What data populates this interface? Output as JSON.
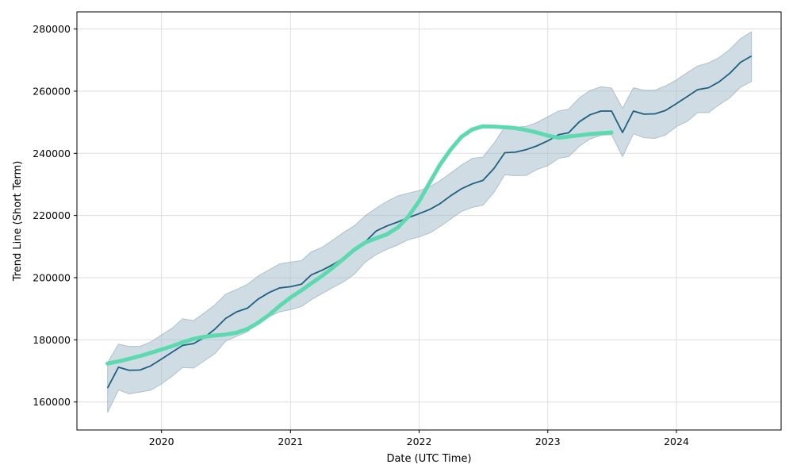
{
  "chart_data": {
    "type": "line",
    "xlabel": "Date (UTC Time)",
    "ylabel": "Trend Line (Short Term)",
    "xlim": [
      "2019-05-06",
      "2024-10-24"
    ],
    "ylim": [
      151000,
      285500
    ],
    "grid": true,
    "x_ticks": [
      {
        "date": "2020-01-01",
        "label": "2020"
      },
      {
        "date": "2021-01-01",
        "label": "2021"
      },
      {
        "date": "2022-01-01",
        "label": "2022"
      },
      {
        "date": "2023-01-01",
        "label": "2023"
      },
      {
        "date": "2024-01-01",
        "label": "2024"
      }
    ],
    "y_ticks": [
      160000,
      180000,
      200000,
      220000,
      240000,
      260000,
      280000
    ],
    "colors": {
      "trend": "#1f5f80",
      "band": "#a8bfce",
      "band_edge": "#8aa5b8",
      "smooth": "#5dd9b0",
      "grid": "#dddddd"
    },
    "series": [
      {
        "role": "trend",
        "points": [
          [
            "2019-08-01",
            164500
          ],
          [
            "2019-09-01",
            171200
          ],
          [
            "2019-10-01",
            170200
          ],
          [
            "2019-11-01",
            170300
          ],
          [
            "2019-12-01",
            171600
          ],
          [
            "2020-01-01",
            173800
          ],
          [
            "2020-02-01",
            176100
          ],
          [
            "2020-03-01",
            178200
          ],
          [
            "2020-04-01",
            178800
          ],
          [
            "2020-05-01",
            180700
          ],
          [
            "2020-06-01",
            183500
          ],
          [
            "2020-07-01",
            186900
          ],
          [
            "2020-08-01",
            189000
          ],
          [
            "2020-09-01",
            190200
          ],
          [
            "2020-10-01",
            193100
          ],
          [
            "2020-11-01",
            195200
          ],
          [
            "2020-12-01",
            196700
          ],
          [
            "2021-01-01",
            197100
          ],
          [
            "2021-02-01",
            197900
          ],
          [
            "2021-03-01",
            200900
          ],
          [
            "2021-04-01",
            202400
          ],
          [
            "2021-05-01",
            204200
          ],
          [
            "2021-06-01",
            206300
          ],
          [
            "2021-07-01",
            208600
          ],
          [
            "2021-08-01",
            211500
          ],
          [
            "2021-09-01",
            215000
          ],
          [
            "2021-10-01",
            216600
          ],
          [
            "2021-11-01",
            217900
          ],
          [
            "2021-12-01",
            219300
          ],
          [
            "2022-01-01",
            220600
          ],
          [
            "2022-02-01",
            222000
          ],
          [
            "2022-03-01",
            223800
          ],
          [
            "2022-04-01",
            226400
          ],
          [
            "2022-05-01",
            228600
          ],
          [
            "2022-06-01",
            230200
          ],
          [
            "2022-07-01",
            231300
          ],
          [
            "2022-08-01",
            235100
          ],
          [
            "2022-09-01",
            240200
          ],
          [
            "2022-10-01",
            240400
          ],
          [
            "2022-11-01",
            241200
          ],
          [
            "2022-12-01",
            242400
          ],
          [
            "2023-01-01",
            244000
          ],
          [
            "2023-02-01",
            246000
          ],
          [
            "2023-03-01",
            246600
          ],
          [
            "2023-04-01",
            250200
          ],
          [
            "2023-05-01",
            252400
          ],
          [
            "2023-06-01",
            253600
          ],
          [
            "2023-07-01",
            253600
          ],
          [
            "2023-08-01",
            246700
          ],
          [
            "2023-09-01",
            253600
          ],
          [
            "2023-10-01",
            252600
          ],
          [
            "2023-11-01",
            252700
          ],
          [
            "2023-12-01",
            253800
          ],
          [
            "2024-01-01",
            256000
          ],
          [
            "2024-02-01",
            258300
          ],
          [
            "2024-03-01",
            260500
          ],
          [
            "2024-04-01",
            261100
          ],
          [
            "2024-05-01",
            263000
          ],
          [
            "2024-06-01",
            265800
          ],
          [
            "2024-07-01",
            269300
          ],
          [
            "2024-08-01",
            271300
          ]
        ]
      },
      {
        "role": "band",
        "upper": [
          [
            "2019-08-01",
            172700
          ],
          [
            "2019-09-01",
            178600
          ],
          [
            "2019-10-01",
            177900
          ],
          [
            "2019-11-01",
            177900
          ],
          [
            "2019-12-01",
            179300
          ],
          [
            "2020-01-01",
            181600
          ],
          [
            "2020-02-01",
            183800
          ],
          [
            "2020-03-01",
            186800
          ],
          [
            "2020-04-01",
            186200
          ],
          [
            "2020-05-01",
            188600
          ],
          [
            "2020-06-01",
            191300
          ],
          [
            "2020-07-01",
            194700
          ],
          [
            "2020-08-01",
            196200
          ],
          [
            "2020-09-01",
            197900
          ],
          [
            "2020-10-01",
            200500
          ],
          [
            "2020-11-01",
            202500
          ],
          [
            "2020-12-01",
            204400
          ],
          [
            "2021-01-01",
            205000
          ],
          [
            "2021-02-01",
            205500
          ],
          [
            "2021-03-01",
            208300
          ],
          [
            "2021-04-01",
            209800
          ],
          [
            "2021-05-01",
            212100
          ],
          [
            "2021-06-01",
            214600
          ],
          [
            "2021-07-01",
            216700
          ],
          [
            "2021-08-01",
            219900
          ],
          [
            "2021-09-01",
            222400
          ],
          [
            "2021-10-01",
            224500
          ],
          [
            "2021-11-01",
            226300
          ],
          [
            "2021-12-01",
            227200
          ],
          [
            "2022-01-01",
            228000
          ],
          [
            "2022-02-01",
            229300
          ],
          [
            "2022-03-01",
            231200
          ],
          [
            "2022-04-01",
            233700
          ],
          [
            "2022-05-01",
            236200
          ],
          [
            "2022-06-01",
            238400
          ],
          [
            "2022-07-01",
            238800
          ],
          [
            "2022-08-01",
            243200
          ],
          [
            "2022-09-01",
            248500
          ],
          [
            "2022-10-01",
            248400
          ],
          [
            "2022-11-01",
            248700
          ],
          [
            "2022-12-01",
            249900
          ],
          [
            "2023-01-01",
            251800
          ],
          [
            "2023-02-01",
            253600
          ],
          [
            "2023-03-01",
            254200
          ],
          [
            "2023-04-01",
            257900
          ],
          [
            "2023-05-01",
            260200
          ],
          [
            "2023-06-01",
            261400
          ],
          [
            "2023-07-01",
            261000
          ],
          [
            "2023-08-01",
            254500
          ],
          [
            "2023-09-01",
            261100
          ],
          [
            "2023-10-01",
            260300
          ],
          [
            "2023-11-01",
            260300
          ],
          [
            "2023-12-01",
            261700
          ],
          [
            "2024-01-01",
            263600
          ],
          [
            "2024-02-01",
            266000
          ],
          [
            "2024-03-01",
            268100
          ],
          [
            "2024-04-01",
            269100
          ],
          [
            "2024-05-01",
            270800
          ],
          [
            "2024-06-01",
            273500
          ],
          [
            "2024-07-01",
            276900
          ],
          [
            "2024-08-01",
            279100
          ]
        ],
        "lower": [
          [
            "2019-08-01",
            156600
          ],
          [
            "2019-09-01",
            163900
          ],
          [
            "2019-10-01",
            162600
          ],
          [
            "2019-11-01",
            163200
          ],
          [
            "2019-12-01",
            163800
          ],
          [
            "2020-01-01",
            165800
          ],
          [
            "2020-02-01",
            168400
          ],
          [
            "2020-03-01",
            171100
          ],
          [
            "2020-04-01",
            170900
          ],
          [
            "2020-05-01",
            173200
          ],
          [
            "2020-06-01",
            175600
          ],
          [
            "2020-07-01",
            179600
          ],
          [
            "2020-08-01",
            181100
          ],
          [
            "2020-09-01",
            182600
          ],
          [
            "2020-10-01",
            185600
          ],
          [
            "2020-11-01",
            187500
          ],
          [
            "2020-12-01",
            189000
          ],
          [
            "2021-01-01",
            189700
          ],
          [
            "2021-02-01",
            190700
          ],
          [
            "2021-03-01",
            192900
          ],
          [
            "2021-04-01",
            194900
          ],
          [
            "2021-05-01",
            196800
          ],
          [
            "2021-06-01",
            198700
          ],
          [
            "2021-07-01",
            201100
          ],
          [
            "2021-08-01",
            205000
          ],
          [
            "2021-09-01",
            207400
          ],
          [
            "2021-10-01",
            209100
          ],
          [
            "2021-11-01",
            210500
          ],
          [
            "2021-12-01",
            212200
          ],
          [
            "2022-01-01",
            213100
          ],
          [
            "2022-02-01",
            214400
          ],
          [
            "2022-03-01",
            216400
          ],
          [
            "2022-04-01",
            218900
          ],
          [
            "2022-05-01",
            221300
          ],
          [
            "2022-06-01",
            222600
          ],
          [
            "2022-07-01",
            223300
          ],
          [
            "2022-08-01",
            227400
          ],
          [
            "2022-09-01",
            233100
          ],
          [
            "2022-10-01",
            232800
          ],
          [
            "2022-11-01",
            232900
          ],
          [
            "2022-12-01",
            234800
          ],
          [
            "2023-01-01",
            236000
          ],
          [
            "2023-02-01",
            238400
          ],
          [
            "2023-03-01",
            238900
          ],
          [
            "2023-04-01",
            242300
          ],
          [
            "2023-05-01",
            244600
          ],
          [
            "2023-06-01",
            245800
          ],
          [
            "2023-07-01",
            246000
          ],
          [
            "2023-08-01",
            238900
          ],
          [
            "2023-09-01",
            246300
          ],
          [
            "2023-10-01",
            245000
          ],
          [
            "2023-11-01",
            244800
          ],
          [
            "2023-12-01",
            245900
          ],
          [
            "2024-01-01",
            248600
          ],
          [
            "2024-02-01",
            250300
          ],
          [
            "2024-03-01",
            253100
          ],
          [
            "2024-04-01",
            253100
          ],
          [
            "2024-05-01",
            255600
          ],
          [
            "2024-06-01",
            257900
          ],
          [
            "2024-07-01",
            261300
          ],
          [
            "2024-08-01",
            263100
          ]
        ]
      },
      {
        "role": "smooth",
        "points": [
          [
            "2019-08-01",
            172400
          ],
          [
            "2019-09-01",
            173100
          ],
          [
            "2019-10-01",
            173900
          ],
          [
            "2019-11-01",
            174800
          ],
          [
            "2019-12-01",
            175800
          ],
          [
            "2020-01-01",
            176900
          ],
          [
            "2020-02-01",
            178000
          ],
          [
            "2020-03-01",
            179200
          ],
          [
            "2020-04-01",
            180300
          ],
          [
            "2020-05-01",
            181000
          ],
          [
            "2020-06-01",
            181400
          ],
          [
            "2020-07-01",
            181700
          ],
          [
            "2020-08-01",
            182300
          ],
          [
            "2020-09-01",
            183500
          ],
          [
            "2020-10-01",
            185500
          ],
          [
            "2020-11-01",
            188000
          ],
          [
            "2020-12-01",
            190900
          ],
          [
            "2021-01-01",
            193600
          ],
          [
            "2021-02-01",
            195900
          ],
          [
            "2021-03-01",
            198200
          ],
          [
            "2021-04-01",
            200600
          ],
          [
            "2021-05-01",
            203200
          ],
          [
            "2021-06-01",
            206100
          ],
          [
            "2021-07-01",
            209000
          ],
          [
            "2021-08-01",
            211300
          ],
          [
            "2021-09-01",
            212700
          ],
          [
            "2021-10-01",
            213900
          ],
          [
            "2021-11-01",
            216100
          ],
          [
            "2021-12-01",
            219600
          ],
          [
            "2022-01-01",
            224600
          ],
          [
            "2022-02-01",
            230800
          ],
          [
            "2022-03-01",
            236300
          ],
          [
            "2022-04-01",
            241300
          ],
          [
            "2022-05-01",
            245300
          ],
          [
            "2022-06-01",
            247700
          ],
          [
            "2022-07-01",
            248700
          ],
          [
            "2022-08-01",
            248600
          ],
          [
            "2022-09-01",
            248400
          ],
          [
            "2022-10-01",
            248100
          ],
          [
            "2022-11-01",
            247500
          ],
          [
            "2022-12-01",
            246700
          ],
          [
            "2023-01-01",
            245700
          ],
          [
            "2023-02-01",
            245000
          ],
          [
            "2023-03-01",
            245400
          ],
          [
            "2023-04-01",
            245800
          ],
          [
            "2023-05-01",
            246200
          ],
          [
            "2023-06-01",
            246500
          ],
          [
            "2023-07-01",
            246700
          ]
        ]
      }
    ]
  }
}
